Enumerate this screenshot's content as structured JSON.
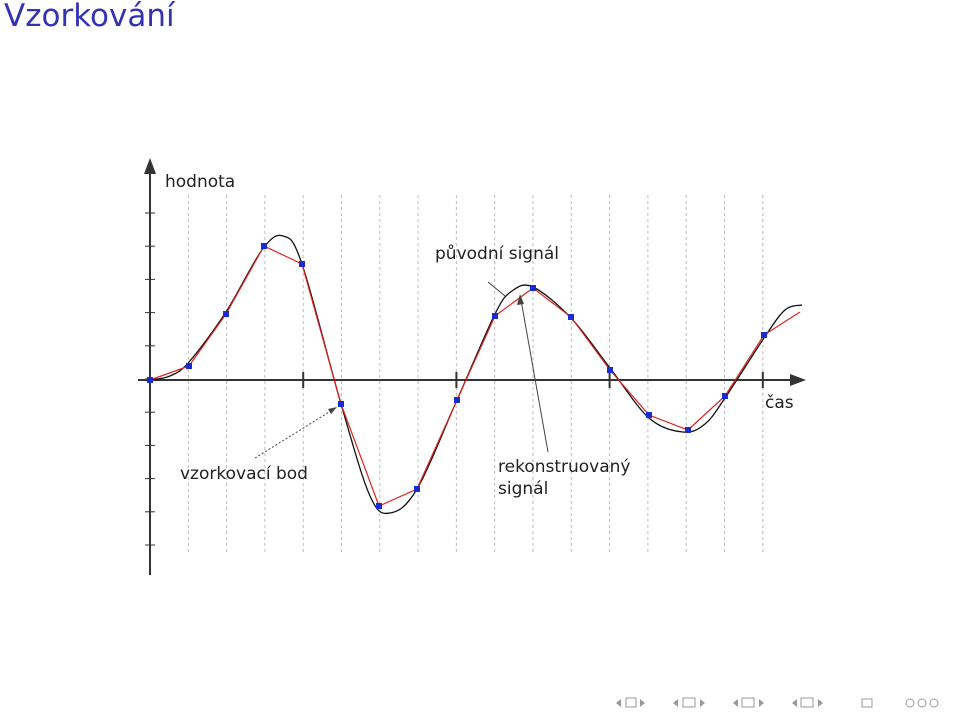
{
  "title": "Vzorkování",
  "diagram": {
    "y_axis_label": "hodnota",
    "x_axis_label": "čas",
    "original_label": "původní signál",
    "sample_label": "vzorkovací bod",
    "reconstructed_label": [
      "rekonstruovaný",
      "signál"
    ]
  }
}
